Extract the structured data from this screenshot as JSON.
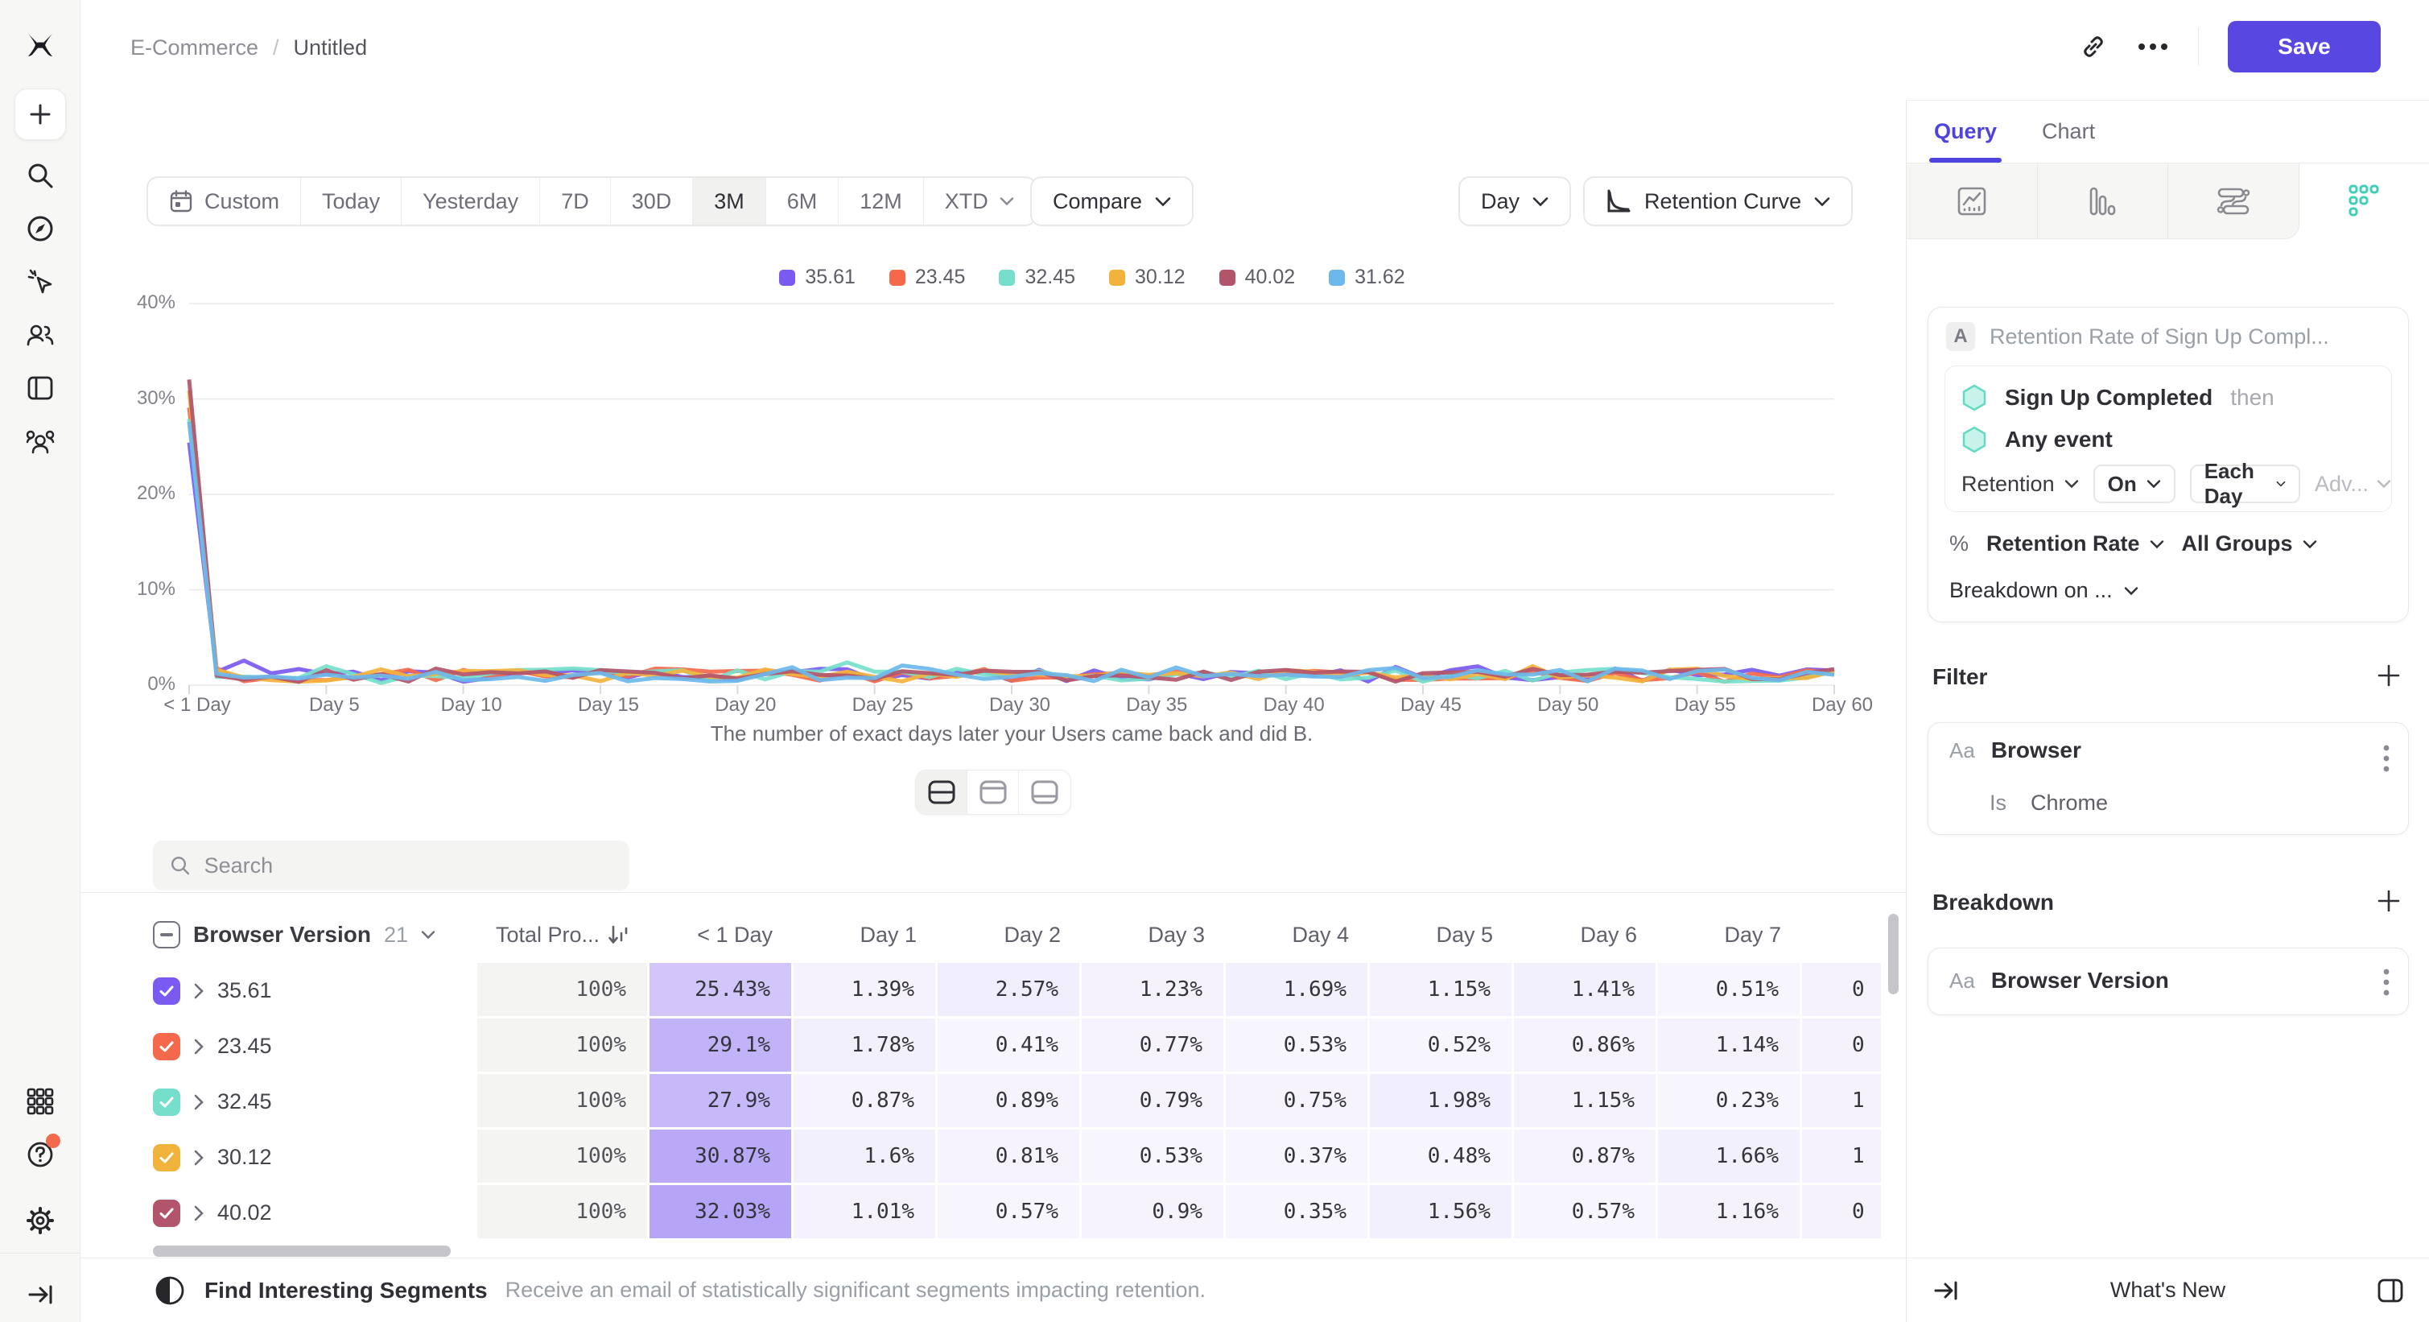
{
  "topbar": {
    "breadcrumb_project": "E-Commerce",
    "breadcrumb_sep": "/",
    "breadcrumb_title": "Untitled",
    "save_label": "Save"
  },
  "toolbar": {
    "date_ranges": [
      "Custom",
      "Today",
      "Yesterday",
      "7D",
      "30D",
      "3M",
      "6M",
      "12M",
      "XTD"
    ],
    "selected_range": "3M",
    "compare_label": "Compare",
    "granularity_label": "Day",
    "chart_type_label": "Retention Curve"
  },
  "chart_data": {
    "type": "line",
    "title": "",
    "caption": "The number of exact days later your Users came back and did B.",
    "x_ticks": [
      "< 1 Day",
      "Day 5",
      "Day 10",
      "Day 15",
      "Day 20",
      "Day 25",
      "Day 30",
      "Day 35",
      "Day 40",
      "Day 45",
      "Day 50",
      "Day 55",
      "Day 60"
    ],
    "y_ticks": [
      "40%",
      "30%",
      "20%",
      "10%",
      "0%"
    ],
    "ylim": [
      0,
      40
    ],
    "x_range_days": [
      0,
      60
    ],
    "grid": true,
    "legend_position": "top-center",
    "series": [
      {
        "name": "35.61",
        "color": "#7a5af0",
        "known_values_day0_7": [
          25.43,
          1.39,
          2.57,
          1.23,
          1.69,
          1.15,
          1.41,
          0.51
        ]
      },
      {
        "name": "23.45",
        "color": "#f4694c",
        "known_values_day0_7": [
          29.1,
          1.78,
          0.41,
          0.77,
          0.53,
          0.52,
          0.86,
          1.14
        ]
      },
      {
        "name": "32.45",
        "color": "#75dfcb",
        "known_values_day0_7": [
          27.9,
          0.87,
          0.89,
          0.79,
          0.75,
          1.98,
          1.15,
          0.23
        ]
      },
      {
        "name": "30.12",
        "color": "#f2b33d",
        "known_values_day0_7": [
          30.87,
          1.6,
          0.81,
          0.53,
          0.37,
          0.48,
          0.87,
          1.66
        ]
      },
      {
        "name": "40.02",
        "color": "#b2556b",
        "known_values_day0_7": [
          32.03,
          1.01,
          0.57,
          0.9,
          0.35,
          1.56,
          0.57,
          1.16
        ]
      },
      {
        "name": "31.62",
        "color": "#6cb8ec",
        "known_values_day0_7": [
          27.6,
          1.2,
          0.8,
          0.9,
          0.7,
          1.1,
          0.8,
          1.0
        ],
        "day0_estimated_from_chart": true
      }
    ],
    "tail_note": "Days 8-60 oscillate roughly 0.2%-2.3%; individual points not legible in screenshot"
  },
  "splitter": {
    "modes": [
      "split-view",
      "chart-only",
      "table-only"
    ],
    "selected": "split-view"
  },
  "search": {
    "placeholder": "Search"
  },
  "table": {
    "group_column": {
      "label": "Browser Version",
      "count": "21"
    },
    "total_column_label": "Total Pro...",
    "day_columns": [
      "< 1 Day",
      "Day 1",
      "Day 2",
      "Day 3",
      "Day 4",
      "Day 5",
      "Day 6",
      "Day 7"
    ],
    "rows": [
      {
        "label": "35.61",
        "color": "#7a5af0",
        "total": "100%",
        "values": [
          "25.43%",
          "1.39%",
          "2.57%",
          "1.23%",
          "1.69%",
          "1.15%",
          "1.41%",
          "0.51%"
        ],
        "day8_partial": "0"
      },
      {
        "label": "23.45",
        "color": "#f4694c",
        "total": "100%",
        "values": [
          "29.1%",
          "1.78%",
          "0.41%",
          "0.77%",
          "0.53%",
          "0.52%",
          "0.86%",
          "1.14%"
        ],
        "day8_partial": "0"
      },
      {
        "label": "32.45",
        "color": "#75dfcb",
        "total": "100%",
        "values": [
          "27.9%",
          "0.87%",
          "0.89%",
          "0.79%",
          "0.75%",
          "1.98%",
          "1.15%",
          "0.23%"
        ],
        "day8_partial": "1"
      },
      {
        "label": "30.12",
        "color": "#f2b33d",
        "total": "100%",
        "values": [
          "30.87%",
          "1.6%",
          "0.81%",
          "0.53%",
          "0.37%",
          "0.48%",
          "0.87%",
          "1.66%"
        ],
        "day8_partial": "1"
      },
      {
        "label": "40.02",
        "color": "#b2556b",
        "total": "100%",
        "values": [
          "32.03%",
          "1.01%",
          "0.57%",
          "0.9%",
          "0.35%",
          "1.56%",
          "0.57%",
          "1.16%"
        ],
        "day8_partial": "0"
      }
    ]
  },
  "main_footer": {
    "title": "Find Interesting Segments",
    "subtitle": "Receive an email of statistically significant segments impacting retention."
  },
  "panel": {
    "tabs": [
      {
        "label": "Query"
      },
      {
        "label": "Chart"
      }
    ],
    "active_tab": "Query",
    "chart_type_icons": [
      "insights-line-icon",
      "funnels-bars-icon",
      "flows-icon",
      "retention-dots-icon"
    ],
    "selected_chart_type": "retention",
    "accent_teal": "#3ecfb6",
    "accent_purple": "#4f43e0",
    "query": {
      "badge": "A",
      "label": "Retention Rate of Sign Up Compl...",
      "first_event": "Sign Up Completed",
      "then_label": "then",
      "second_event": "Any event",
      "retention_dropdown": "Retention",
      "on_dropdown": "On",
      "each_day_dropdown": "Each Day",
      "adv_dropdown": "Adv...",
      "measure_prefix": "%",
      "measure_dropdown": "Retention Rate",
      "groups_dropdown": "All Groups",
      "breakdown_on_dropdown": "Breakdown on ..."
    },
    "filter": {
      "heading": "Filter",
      "property_type": "Aa",
      "property": "Browser",
      "operator": "Is",
      "value": "Chrome"
    },
    "breakdown": {
      "heading": "Breakdown",
      "property_type": "Aa",
      "property": "Browser Version"
    },
    "footer": {
      "whats_new": "What's New"
    }
  }
}
